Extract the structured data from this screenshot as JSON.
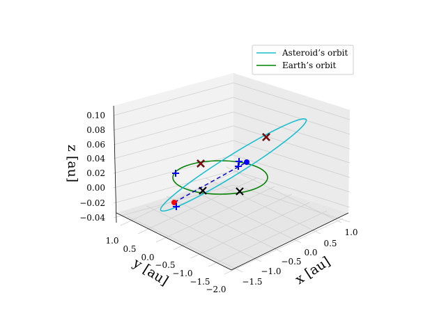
{
  "chart_data": {
    "type": "3d-line",
    "projection": "3d",
    "x_axis": {
      "label": "x [au]",
      "ticks": [
        "−1.5",
        "−1.0",
        "−0.5",
        "0.0",
        "0.5",
        "1.0"
      ]
    },
    "y_axis": {
      "label": "y [au]",
      "ticks": [
        "1.0",
        "0.5",
        "0.0",
        "−0.5",
        "−1.0",
        "−1.5",
        "−2.0"
      ]
    },
    "z_axis": {
      "label": "z [au]",
      "ticks": [
        "0.10",
        "0.08",
        "0.06",
        "0.04",
        "0.02",
        "0.00",
        "−0.02",
        "−0.04"
      ]
    },
    "grid": true,
    "legend": {
      "placement": "top-right",
      "entries": [
        {
          "name": "Asteroid’s orbit",
          "color": "#17becf"
        },
        {
          "name": "Earth’s orbit",
          "color": "#008000"
        }
      ]
    },
    "series": [
      {
        "name": "Asteroid’s orbit",
        "kind": "ellipse",
        "color": "#17becf"
      },
      {
        "name": "Earth’s orbit",
        "kind": "circle",
        "color": "#008000"
      },
      {
        "name": "",
        "kind": "dashed-segment",
        "color": "#0000cd",
        "style": "dashed"
      }
    ],
    "markers": [
      {
        "symbol": "red-dot",
        "color": "#ff0000"
      },
      {
        "symbol": "blue-dot",
        "color": "#0000ff"
      },
      {
        "symbol": "blue-plus",
        "color": "#0000ff",
        "count": 5
      },
      {
        "symbol": "black-x",
        "color": "#000000",
        "count": 2
      },
      {
        "symbol": "red-over-black-x",
        "color": "#cc0000",
        "count": 2
      }
    ]
  }
}
